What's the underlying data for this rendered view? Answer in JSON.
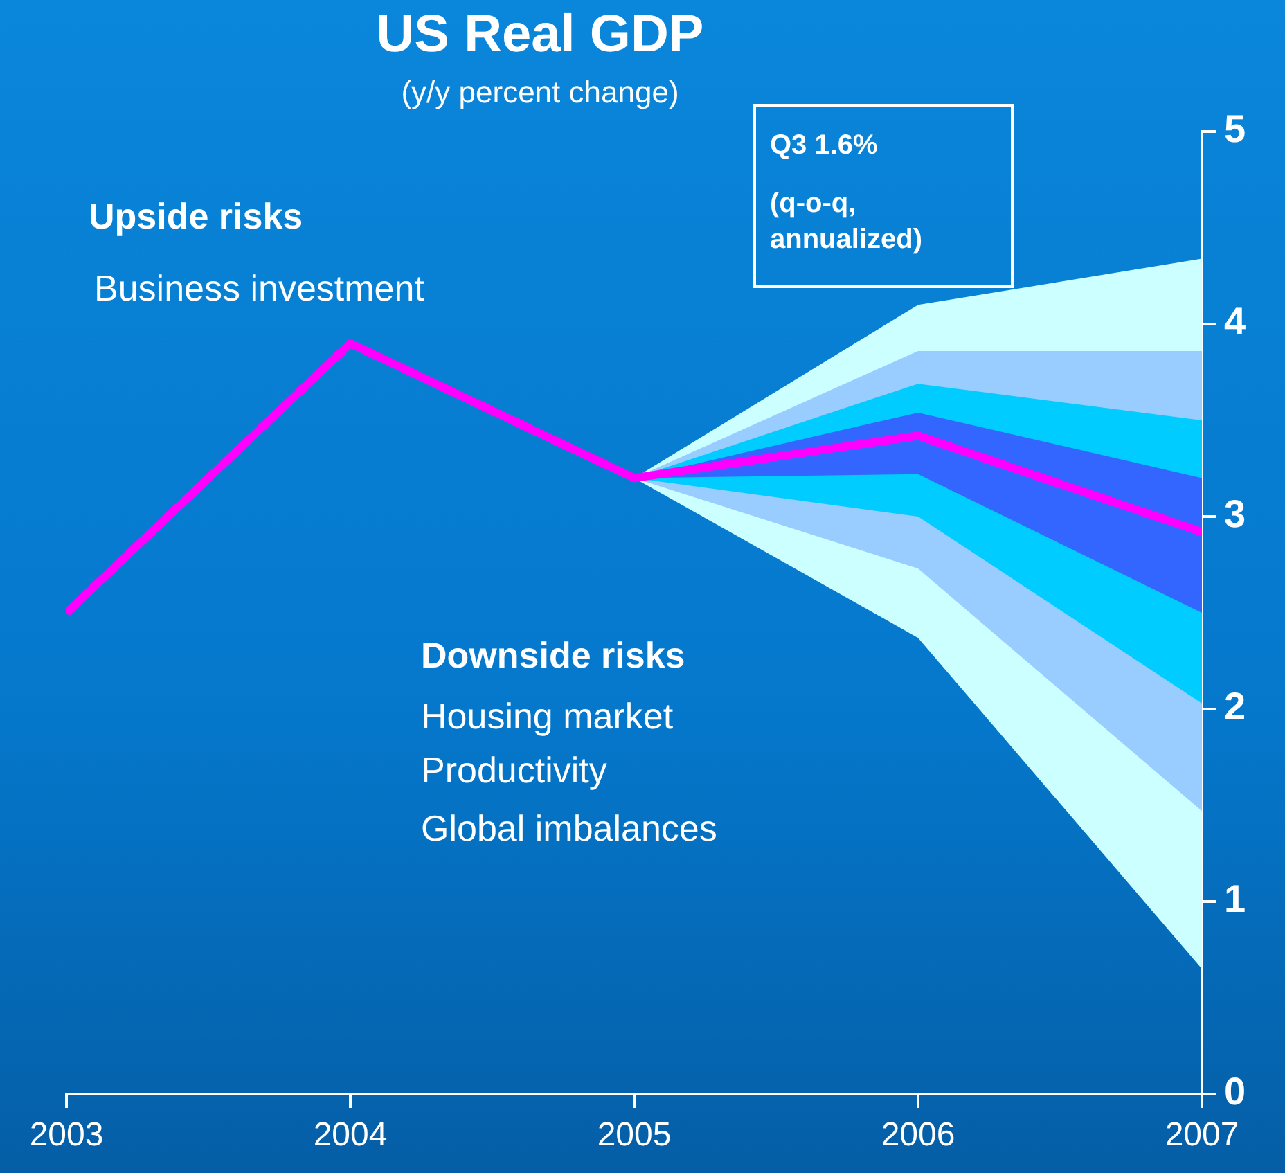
{
  "chart_data": {
    "type": "line",
    "title": "US Real GDP",
    "subtitle": "(y/y percent change)",
    "annotations": [
      "Upside risks",
      "Business investment",
      "Downside risks",
      "Housing market",
      "Productivity",
      "Global imbalances",
      "Q3 1.6%",
      "(q-o-q, annualized)"
    ],
    "xlim": [
      2003,
      2007
    ],
    "xticks": [
      2003,
      2004,
      2005,
      2006,
      2007
    ],
    "ylim": [
      0,
      5
    ],
    "yticks": [
      0,
      1,
      2,
      3,
      4,
      5
    ],
    "grid": false,
    "legend": false,
    "marker": "none",
    "line_style": "solid",
    "series": [
      {
        "color": "#ccffff",
        "x": [
          2005,
          2006,
          2007
        ],
        "values": [
          null,
          null,
          null
        ],
        "lower": [
          3.2,
          2.37,
          0.65
        ],
        "upper": [
          3.2,
          4.1,
          4.34
        ]
      },
      {
        "color": "#99ccff",
        "x": [
          2005,
          2006,
          2007
        ],
        "values": [
          null,
          null,
          null
        ],
        "lower": [
          3.2,
          2.73,
          1.47
        ],
        "upper": [
          3.2,
          3.86,
          3.86
        ]
      },
      {
        "color": "#00ccff",
        "x": [
          2005,
          2006,
          2007
        ],
        "values": [
          null,
          null,
          null
        ],
        "lower": [
          3.2,
          3.0,
          2.03
        ],
        "upper": [
          3.2,
          3.69,
          3.5
        ]
      },
      {
        "color": "#3366ff",
        "x": [
          2005,
          2006,
          2007
        ],
        "values": [
          null,
          null,
          null
        ],
        "lower": [
          3.2,
          3.22,
          2.5
        ],
        "upper": [
          3.2,
          3.54,
          3.2
        ]
      },
      {
        "type": "line",
        "color": "#ff00ff",
        "x": [
          2003,
          2004,
          2005,
          2006,
          2007
        ],
        "values": [
          2.5,
          3.9,
          3.2,
          3.42,
          2.92
        ]
      }
    ]
  }
}
